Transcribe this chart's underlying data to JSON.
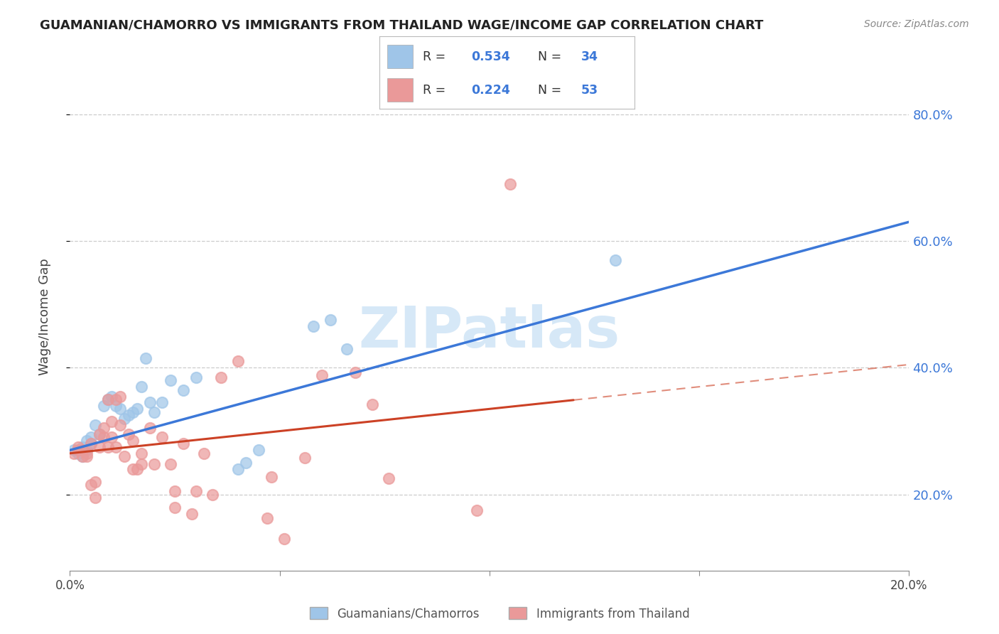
{
  "title": "GUAMANIAN/CHAMORRO VS IMMIGRANTS FROM THAILAND WAGE/INCOME GAP CORRELATION CHART",
  "source": "Source: ZipAtlas.com",
  "ylabel": "Wage/Income Gap",
  "legend_label1": "Guamanians/Chamorros",
  "legend_label2": "Immigrants from Thailand",
  "R1": "0.534",
  "N1": "34",
  "R2": "0.224",
  "N2": "53",
  "color1": "#9fc5e8",
  "color2": "#ea9999",
  "line1_color": "#3c78d8",
  "line2_color": "#cc4125",
  "watermark_color": "#d6e8f7",
  "blue_scatter": [
    [
      0.001,
      0.27
    ],
    [
      0.002,
      0.265
    ],
    [
      0.003,
      0.275
    ],
    [
      0.003,
      0.26
    ],
    [
      0.004,
      0.285
    ],
    [
      0.004,
      0.27
    ],
    [
      0.005,
      0.29
    ],
    [
      0.005,
      0.28
    ],
    [
      0.006,
      0.31
    ],
    [
      0.007,
      0.295
    ],
    [
      0.008,
      0.34
    ],
    [
      0.009,
      0.35
    ],
    [
      0.01,
      0.355
    ],
    [
      0.011,
      0.34
    ],
    [
      0.012,
      0.335
    ],
    [
      0.013,
      0.32
    ],
    [
      0.014,
      0.325
    ],
    [
      0.015,
      0.33
    ],
    [
      0.016,
      0.335
    ],
    [
      0.017,
      0.37
    ],
    [
      0.018,
      0.415
    ],
    [
      0.019,
      0.345
    ],
    [
      0.02,
      0.33
    ],
    [
      0.022,
      0.345
    ],
    [
      0.024,
      0.38
    ],
    [
      0.027,
      0.365
    ],
    [
      0.03,
      0.385
    ],
    [
      0.04,
      0.24
    ],
    [
      0.042,
      0.25
    ],
    [
      0.045,
      0.27
    ],
    [
      0.058,
      0.465
    ],
    [
      0.062,
      0.475
    ],
    [
      0.066,
      0.43
    ],
    [
      0.13,
      0.57
    ]
  ],
  "pink_scatter": [
    [
      0.001,
      0.265
    ],
    [
      0.002,
      0.275
    ],
    [
      0.002,
      0.27
    ],
    [
      0.003,
      0.27
    ],
    [
      0.003,
      0.26
    ],
    [
      0.004,
      0.265
    ],
    [
      0.004,
      0.26
    ],
    [
      0.005,
      0.28
    ],
    [
      0.005,
      0.215
    ],
    [
      0.006,
      0.22
    ],
    [
      0.006,
      0.195
    ],
    [
      0.007,
      0.295
    ],
    [
      0.007,
      0.275
    ],
    [
      0.008,
      0.305
    ],
    [
      0.008,
      0.29
    ],
    [
      0.009,
      0.35
    ],
    [
      0.009,
      0.275
    ],
    [
      0.01,
      0.29
    ],
    [
      0.01,
      0.315
    ],
    [
      0.011,
      0.275
    ],
    [
      0.011,
      0.35
    ],
    [
      0.012,
      0.355
    ],
    [
      0.012,
      0.31
    ],
    [
      0.013,
      0.26
    ],
    [
      0.014,
      0.295
    ],
    [
      0.015,
      0.285
    ],
    [
      0.015,
      0.24
    ],
    [
      0.016,
      0.24
    ],
    [
      0.017,
      0.265
    ],
    [
      0.017,
      0.248
    ],
    [
      0.019,
      0.305
    ],
    [
      0.02,
      0.248
    ],
    [
      0.022,
      0.29
    ],
    [
      0.024,
      0.248
    ],
    [
      0.025,
      0.205
    ],
    [
      0.025,
      0.18
    ],
    [
      0.027,
      0.28
    ],
    [
      0.029,
      0.17
    ],
    [
      0.03,
      0.205
    ],
    [
      0.032,
      0.265
    ],
    [
      0.034,
      0.2
    ],
    [
      0.036,
      0.385
    ],
    [
      0.04,
      0.41
    ],
    [
      0.047,
      0.163
    ],
    [
      0.048,
      0.228
    ],
    [
      0.051,
      0.13
    ],
    [
      0.056,
      0.258
    ],
    [
      0.06,
      0.388
    ],
    [
      0.068,
      0.392
    ],
    [
      0.072,
      0.342
    ],
    [
      0.076,
      0.225
    ],
    [
      0.097,
      0.175
    ],
    [
      0.105,
      0.69
    ]
  ],
  "x_min": 0.0,
  "x_max": 0.2,
  "y_min": 0.08,
  "y_max": 0.88,
  "line1_x0": 0.0,
  "line1_y0": 0.27,
  "line1_x1": 0.2,
  "line1_y1": 0.63,
  "line2_x0": 0.0,
  "line2_y0": 0.265,
  "line2_x1": 0.2,
  "line2_y1": 0.405,
  "line2_dash_x0": 0.12,
  "line2_dash_x1": 0.2
}
